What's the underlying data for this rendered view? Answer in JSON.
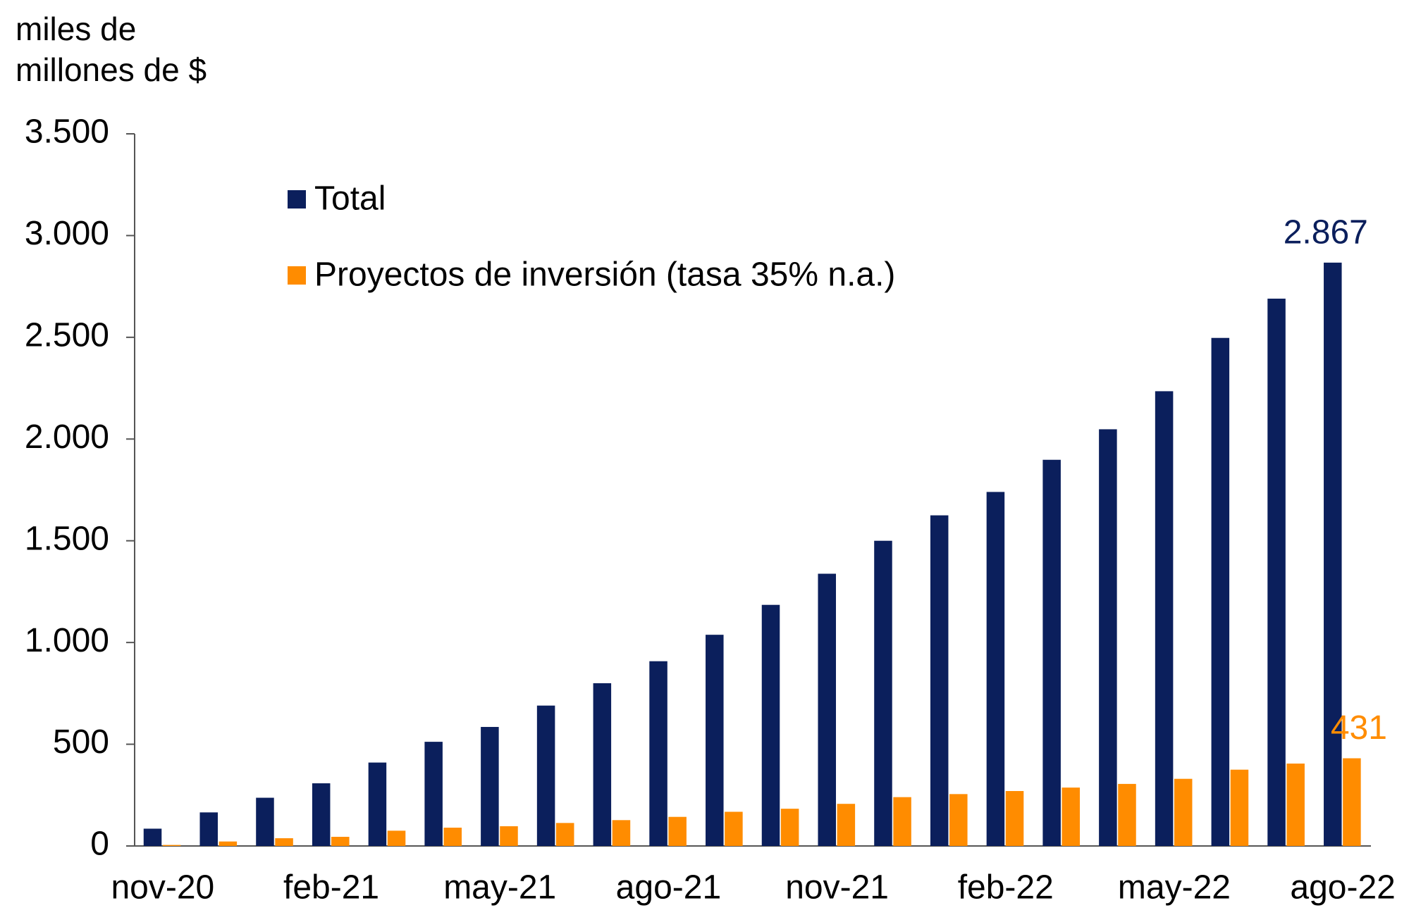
{
  "chart_data": {
    "type": "bar",
    "ylabel": "miles de millones de $",
    "categories": [
      "nov-20",
      null,
      null,
      "feb-21",
      null,
      null,
      "may-21",
      null,
      null,
      "ago-21",
      null,
      null,
      "nov-21",
      null,
      null,
      "feb-22",
      null,
      null,
      "may-22",
      null,
      null,
      "ago-22"
    ],
    "series": [
      {
        "name": "Total",
        "color": "#0b1f5c",
        "values": [
          85,
          165,
          237,
          308,
          410,
          512,
          585,
          690,
          800,
          908,
          1038,
          1185,
          1338,
          1500,
          1625,
          1740,
          1898,
          2048,
          2235,
          2497,
          2690,
          2867
        ],
        "value_labels": [
          null,
          null,
          null,
          null,
          null,
          null,
          null,
          null,
          null,
          null,
          null,
          null,
          null,
          null,
          null,
          null,
          null,
          null,
          null,
          null,
          null,
          "2.867"
        ]
      },
      {
        "name": "Proyectos de inversión (tasa 35% n.a.)",
        "color": "#ff8c00",
        "values": [
          5,
          22,
          38,
          45,
          75,
          90,
          97,
          113,
          127,
          143,
          168,
          183,
          207,
          240,
          255,
          270,
          287,
          305,
          330,
          375,
          405,
          431
        ]
      }
    ],
    "ylim": [
      0,
      3500
    ],
    "yticks": [
      0,
      500,
      {
        "value": 1000,
        "label": "1.000"
      },
      {
        "value": 1500,
        "label": "1.500"
      },
      {
        "value": 2000,
        "label": "2.000"
      },
      {
        "value": 2500,
        "label": "2.500"
      },
      {
        "value": 3000,
        "label": "3.000"
      },
      {
        "value": 3500,
        "label": "3.500"
      }
    ],
    "grid": false
  }
}
